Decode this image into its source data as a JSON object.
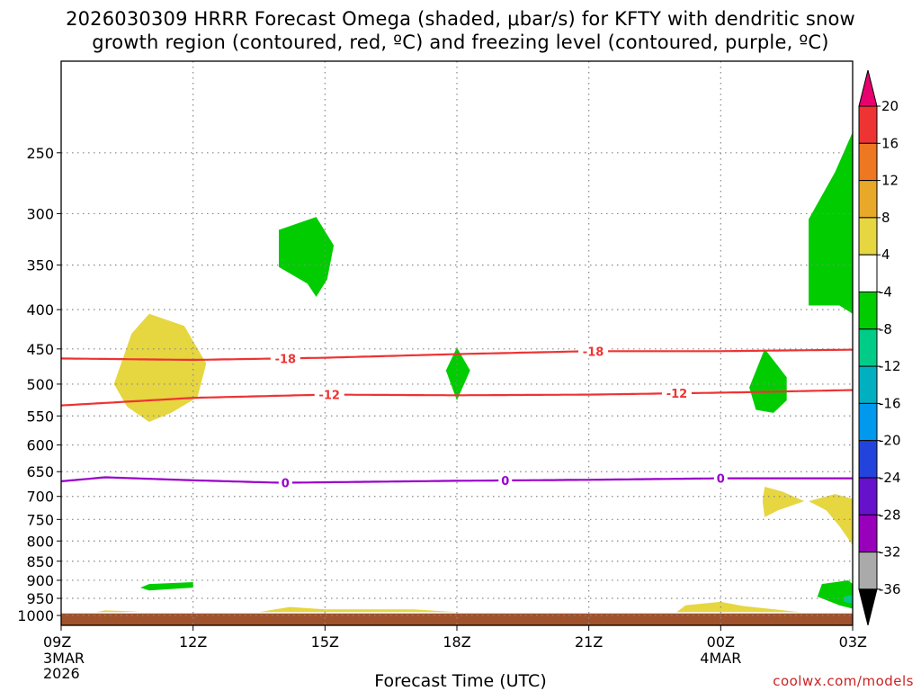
{
  "title": {
    "line1": "2026030309 HRRR Forecast Omega (shaded, μbar/s) for KFTY with dendritic snow",
    "line2": "growth region (contoured, red, ºC) and freezing level (contoured, purple, ºC)"
  },
  "xlabel": "Forecast Time (UTC)",
  "source": "coolwx.com/models",
  "colors": {
    "dgz_contour": "#ee3333",
    "freezing_contour": "#9900cc",
    "ground": "#a0522d",
    "grid": "#888888"
  },
  "chart_data": {
    "type": "time-height cross section",
    "x_axis": {
      "label": "Forecast Time (UTC)",
      "range_hours": [
        0,
        18
      ],
      "ticks": [
        {
          "hour": 0,
          "label": "09Z",
          "sub": [
            "3MAR",
            "2026"
          ]
        },
        {
          "hour": 3,
          "label": "12Z",
          "sub": []
        },
        {
          "hour": 6,
          "label": "15Z",
          "sub": []
        },
        {
          "hour": 9,
          "label": "18Z",
          "sub": []
        },
        {
          "hour": 12,
          "label": "21Z",
          "sub": []
        },
        {
          "hour": 15,
          "label": "00Z",
          "sub": [
            "4MAR"
          ]
        },
        {
          "hour": 18,
          "label": "03Z",
          "sub": []
        }
      ]
    },
    "y_axis": {
      "units": "hPa",
      "scale": "log-pressure",
      "range": [
        1030,
        190
      ],
      "ticks": [
        250,
        300,
        350,
        400,
        450,
        500,
        550,
        600,
        650,
        700,
        750,
        800,
        850,
        900,
        950,
        1000
      ]
    },
    "grid": true,
    "colorbar": {
      "position": "right",
      "levels": [
        20,
        16,
        12,
        8,
        4,
        -4,
        -8,
        -12,
        -16,
        -20,
        -24,
        -28,
        -32,
        -36
      ],
      "colors": [
        "#e8006e",
        "#ee3333",
        "#ee7722",
        "#e8a828",
        "#e6d640",
        "#ffffff",
        "#00cc00",
        "#00cc88",
        "#00b0c0",
        "#0099ee",
        "#2244dd",
        "#6611cc",
        "#9900bb",
        "#aaaaaa",
        "#000000"
      ]
    },
    "contours": [
      {
        "label": "-18",
        "color": "#ee3333",
        "points": [
          [
            0,
            463
          ],
          [
            3,
            465
          ],
          [
            6,
            462
          ],
          [
            9,
            457
          ],
          [
            12,
            453
          ],
          [
            15,
            453
          ],
          [
            18,
            451
          ]
        ],
        "label_positions": [
          5.1,
          12.1
        ]
      },
      {
        "label": "-12",
        "color": "#ee3333",
        "points": [
          [
            0,
            533
          ],
          [
            3,
            521
          ],
          [
            6,
            516
          ],
          [
            9,
            517
          ],
          [
            12,
            516
          ],
          [
            15,
            513
          ],
          [
            18,
            509
          ]
        ],
        "label_positions": [
          6.1,
          14.0
        ]
      },
      {
        "label": "0",
        "color": "#9900cc",
        "points": [
          [
            0,
            669
          ],
          [
            1,
            661
          ],
          [
            3,
            667
          ],
          [
            5,
            672
          ],
          [
            9,
            668
          ],
          [
            12,
            666
          ],
          [
            15,
            663
          ],
          [
            18,
            663
          ]
        ],
        "label_positions": [
          5.1,
          10.1,
          15.0
        ]
      }
    ],
    "shaded_regions": [
      {
        "value": 6,
        "color": "#e6d640",
        "points": [
          [
            1.2,
            500
          ],
          [
            1.6,
            430
          ],
          [
            2.0,
            405
          ],
          [
            2.8,
            420
          ],
          [
            3.3,
            470
          ],
          [
            3.1,
            520
          ],
          [
            2.5,
            545
          ],
          [
            2.0,
            560
          ],
          [
            1.5,
            535
          ],
          [
            1.2,
            500
          ]
        ]
      },
      {
        "value": -6,
        "color": "#00cc00",
        "points": [
          [
            4.95,
            315
          ],
          [
            5.8,
            303
          ],
          [
            6.2,
            330
          ],
          [
            6.05,
            365
          ],
          [
            5.8,
            385
          ],
          [
            5.6,
            370
          ],
          [
            4.95,
            352
          ],
          [
            4.95,
            315
          ]
        ]
      },
      {
        "value": -6,
        "color": "#00cc00",
        "points": [
          [
            9.0,
            448
          ],
          [
            9.3,
            480
          ],
          [
            9.0,
            525
          ],
          [
            8.75,
            480
          ],
          [
            9.0,
            448
          ]
        ]
      },
      {
        "value": -6,
        "color": "#00cc00",
        "points": [
          [
            16.0,
            450
          ],
          [
            16.5,
            490
          ],
          [
            16.5,
            525
          ],
          [
            16.2,
            545
          ],
          [
            15.8,
            540
          ],
          [
            15.65,
            505
          ],
          [
            16.0,
            450
          ]
        ]
      },
      {
        "value": -6,
        "color": "#00cc00",
        "points": [
          [
            18.0,
            235
          ],
          [
            17.6,
            265
          ],
          [
            17.0,
            305
          ],
          [
            17.0,
            395
          ],
          [
            17.7,
            395
          ],
          [
            18.0,
            405
          ],
          [
            18.0,
            235
          ]
        ]
      },
      {
        "value": -6,
        "color": "#00cc00",
        "points": [
          [
            2.0,
            910
          ],
          [
            3.0,
            905
          ],
          [
            3.0,
            920
          ],
          [
            2.0,
            928
          ],
          [
            1.8,
            920
          ],
          [
            2.0,
            910
          ]
        ]
      },
      {
        "value": -6,
        "color": "#00cc00",
        "points": [
          [
            17.3,
            910
          ],
          [
            17.9,
            900
          ],
          [
            18.0,
            910
          ],
          [
            18.0,
            980
          ],
          [
            17.7,
            970
          ],
          [
            17.2,
            945
          ],
          [
            17.3,
            910
          ]
        ]
      },
      {
        "value": -8,
        "color": "#00cc88",
        "points": [
          [
            17.8,
            945
          ],
          [
            18.0,
            940
          ],
          [
            18.0,
            965
          ],
          [
            17.8,
            960
          ],
          [
            17.8,
            945
          ]
        ]
      },
      {
        "value": 6,
        "color": "#e6d640",
        "points": [
          [
            16.0,
            680
          ],
          [
            16.4,
            690
          ],
          [
            16.9,
            710
          ],
          [
            16.3,
            730
          ],
          [
            16.0,
            745
          ],
          [
            15.95,
            710
          ],
          [
            16.0,
            680
          ]
        ]
      },
      {
        "value": 6,
        "color": "#e6d640",
        "points": [
          [
            17.0,
            710
          ],
          [
            17.6,
            695
          ],
          [
            18.0,
            705
          ],
          [
            18.0,
            810
          ],
          [
            17.7,
            765
          ],
          [
            17.4,
            730
          ],
          [
            17.0,
            710
          ]
        ]
      },
      {
        "value": 6,
        "color": "#e6d640",
        "points": [
          [
            14.0,
            990
          ],
          [
            14.2,
            970
          ],
          [
            15.0,
            960
          ],
          [
            15.5,
            972
          ],
          [
            16.8,
            990
          ],
          [
            14.0,
            990
          ]
        ]
      },
      {
        "value": 6,
        "color": "#e6d640",
        "points": [
          [
            4.5,
            990
          ],
          [
            5.2,
            975
          ],
          [
            6.0,
            982
          ],
          [
            8.0,
            982
          ],
          [
            9.0,
            990
          ],
          [
            4.5,
            990
          ]
        ]
      },
      {
        "value": 6,
        "color": "#e6d640",
        "points": [
          [
            0.8,
            990
          ],
          [
            1.0,
            985
          ],
          [
            1.8,
            988
          ],
          [
            1.4,
            990
          ],
          [
            0.8,
            990
          ]
        ]
      }
    ],
    "ground": {
      "color": "#a0522d",
      "top_hPa": 994
    }
  }
}
